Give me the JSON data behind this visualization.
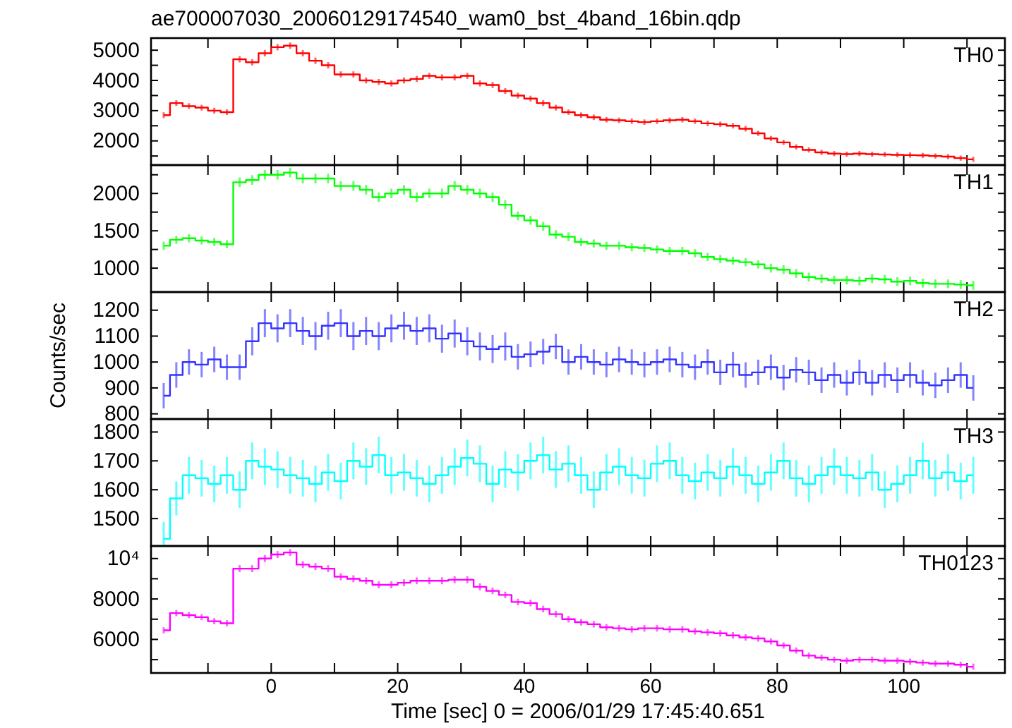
{
  "chart_data": [
    {
      "type": "step",
      "title": "ae700007030_20060129174540_wam0_bst_4band_16bin.qdp",
      "annotations": [
        "TH0"
      ],
      "xlim": [
        -19,
        116
      ],
      "xticks": [
        {
          "value": -10,
          "label": null
        },
        0,
        {
          "value": 10,
          "label": null
        },
        20,
        {
          "value": 30,
          "label": null
        },
        40,
        {
          "value": 50,
          "label": null
        },
        60,
        {
          "value": 70,
          "label": null
        },
        80,
        {
          "value": 90,
          "label": null
        },
        100,
        {
          "value": 110,
          "label": null
        }
      ],
      "ylim": [
        1200,
        5400
      ],
      "yticks": [
        {
          "value": 1500,
          "label": null
        },
        2000,
        {
          "value": 2500,
          "label": null
        },
        3000,
        {
          "value": 3500,
          "label": null
        },
        4000,
        {
          "value": 4500,
          "label": null
        },
        5000
      ],
      "tick_labels": "y",
      "x": [
        -17,
        -15,
        -13,
        -11,
        -9,
        -7,
        -5,
        -3,
        -1,
        1,
        3,
        5,
        7,
        9,
        11,
        13,
        15,
        17,
        19,
        21,
        23,
        25,
        27,
        29,
        31,
        33,
        35,
        37,
        39,
        41,
        43,
        45,
        47,
        49,
        51,
        53,
        55,
        57,
        59,
        61,
        63,
        65,
        67,
        69,
        71,
        73,
        75,
        77,
        79,
        81,
        83,
        85,
        87,
        89,
        91,
        93,
        95,
        97,
        99,
        101,
        103,
        105,
        107,
        109,
        111
      ],
      "series": [
        {
          "color": "#ff0000",
          "values": [
            2850,
            3250,
            3150,
            3100,
            3000,
            2950,
            4700,
            4600,
            4900,
            5100,
            5150,
            4900,
            4650,
            4500,
            4200,
            4200,
            4000,
            3950,
            3900,
            4000,
            4050,
            4150,
            4100,
            4100,
            4150,
            3900,
            3850,
            3650,
            3500,
            3400,
            3250,
            3100,
            2950,
            2850,
            2780,
            2700,
            2680,
            2650,
            2620,
            2650,
            2680,
            2700,
            2650,
            2580,
            2550,
            2500,
            2400,
            2250,
            2080,
            1950,
            1800,
            1700,
            1620,
            1580,
            1560,
            1580,
            1560,
            1550,
            1540,
            1530,
            1520,
            1500,
            1480,
            1430,
            1390
          ],
          "errors": [
            60,
            60,
            60,
            60,
            60,
            60,
            70,
            70,
            70,
            70,
            70,
            70,
            70,
            70,
            65,
            65,
            65,
            65,
            65,
            65,
            65,
            65,
            65,
            65,
            65,
            65,
            65,
            60,
            60,
            60,
            60,
            60,
            55,
            55,
            55,
            55,
            55,
            55,
            55,
            55,
            55,
            55,
            55,
            55,
            55,
            55,
            55,
            50,
            50,
            50,
            50,
            50,
            50,
            50,
            50,
            50,
            50,
            50,
            50,
            50,
            50,
            50,
            50,
            50,
            50
          ]
        }
      ]
    },
    {
      "type": "step",
      "annotations": [
        "TH1"
      ],
      "xlim": [
        -19,
        116
      ],
      "xticks": [
        {
          "value": -10,
          "label": null
        },
        0,
        {
          "value": 10,
          "label": null
        },
        20,
        {
          "value": 30,
          "label": null
        },
        40,
        {
          "value": 50,
          "label": null
        },
        60,
        {
          "value": 70,
          "label": null
        },
        80,
        {
          "value": 90,
          "label": null
        },
        100,
        {
          "value": 110,
          "label": null
        }
      ],
      "ylim": [
        680,
        2380
      ],
      "yticks": [
        1000,
        {
          "value": 1250,
          "label": null
        },
        1500,
        {
          "value": 1750,
          "label": null
        },
        2000,
        {
          "value": 2250,
          "label": null
        }
      ],
      "tick_labels": "y",
      "x": [
        -17,
        -15,
        -13,
        -11,
        -9,
        -7,
        -5,
        -3,
        -1,
        1,
        3,
        5,
        7,
        9,
        11,
        13,
        15,
        17,
        19,
        21,
        23,
        25,
        27,
        29,
        31,
        33,
        35,
        37,
        39,
        41,
        43,
        45,
        47,
        49,
        51,
        53,
        55,
        57,
        59,
        61,
        63,
        65,
        67,
        69,
        71,
        73,
        75,
        77,
        79,
        81,
        83,
        85,
        87,
        89,
        91,
        93,
        95,
        97,
        99,
        101,
        103,
        105,
        107,
        109,
        111
      ],
      "series": [
        {
          "color": "#00ff00",
          "values": [
            1300,
            1380,
            1400,
            1370,
            1350,
            1320,
            2150,
            2180,
            2250,
            2250,
            2280,
            2200,
            2200,
            2200,
            2100,
            2100,
            2050,
            1950,
            2000,
            2050,
            1950,
            2000,
            2000,
            2100,
            2050,
            2000,
            1950,
            1850,
            1700,
            1640,
            1560,
            1450,
            1420,
            1350,
            1330,
            1300,
            1300,
            1280,
            1270,
            1250,
            1230,
            1230,
            1200,
            1150,
            1120,
            1100,
            1080,
            1050,
            1000,
            980,
            930,
            880,
            860,
            840,
            840,
            830,
            860,
            850,
            820,
            830,
            800,
            790,
            790,
            780,
            770
          ],
          "errors": [
            40,
            40,
            40,
            40,
            40,
            40,
            50,
            50,
            50,
            50,
            50,
            50,
            50,
            50,
            50,
            50,
            50,
            50,
            50,
            50,
            50,
            50,
            50,
            50,
            50,
            50,
            50,
            45,
            45,
            45,
            45,
            45,
            45,
            40,
            40,
            40,
            40,
            40,
            40,
            40,
            40,
            40,
            40,
            40,
            40,
            40,
            40,
            40,
            45,
            45,
            45,
            45,
            45,
            45,
            45,
            45,
            45,
            45,
            45,
            45,
            45,
            45,
            45,
            45,
            45
          ]
        }
      ]
    },
    {
      "type": "step",
      "annotations": [
        "TH2"
      ],
      "ylabel": "Counts/sec",
      "xlim": [
        -19,
        116
      ],
      "xticks": [
        {
          "value": -10,
          "label": null
        },
        0,
        {
          "value": 10,
          "label": null
        },
        20,
        {
          "value": 30,
          "label": null
        },
        40,
        {
          "value": 50,
          "label": null
        },
        60,
        {
          "value": 70,
          "label": null
        },
        80,
        {
          "value": 90,
          "label": null
        },
        100,
        {
          "value": 110,
          "label": null
        }
      ],
      "ylim": [
        780,
        1270
      ],
      "yticks": [
        800,
        900,
        1000,
        1100,
        1200
      ],
      "tick_labels": "y",
      "x": [
        -17,
        -15,
        -13,
        -11,
        -9,
        -7,
        -5,
        -3,
        -1,
        1,
        3,
        5,
        7,
        9,
        11,
        13,
        15,
        17,
        19,
        21,
        23,
        25,
        27,
        29,
        31,
        33,
        35,
        37,
        39,
        41,
        43,
        45,
        47,
        49,
        51,
        53,
        55,
        57,
        59,
        61,
        63,
        65,
        67,
        69,
        71,
        73,
        75,
        77,
        79,
        81,
        83,
        85,
        87,
        89,
        91,
        93,
        95,
        97,
        99,
        101,
        103,
        105,
        107,
        109,
        111
      ],
      "series": [
        {
          "color": "#3333ff",
          "values": [
            870,
            950,
            1000,
            990,
            1010,
            980,
            980,
            1080,
            1150,
            1130,
            1150,
            1120,
            1100,
            1140,
            1150,
            1100,
            1120,
            1100,
            1130,
            1140,
            1120,
            1130,
            1090,
            1110,
            1080,
            1060,
            1050,
            1060,
            1020,
            1030,
            1040,
            1060,
            1000,
            1020,
            1000,
            990,
            1010,
            1000,
            990,
            1000,
            1010,
            990,
            980,
            1000,
            960,
            990,
            950,
            960,
            980,
            940,
            970,
            960,
            930,
            950,
            920,
            960,
            920,
            950,
            930,
            950,
            920,
            910,
            930,
            950,
            900
          ],
          "errors": [
            45,
            45,
            45,
            45,
            45,
            45,
            45,
            50,
            50,
            50,
            50,
            50,
            50,
            50,
            50,
            50,
            50,
            50,
            50,
            50,
            50,
            50,
            50,
            50,
            50,
            50,
            50,
            50,
            45,
            45,
            45,
            45,
            45,
            45,
            45,
            45,
            45,
            45,
            45,
            45,
            45,
            45,
            45,
            45,
            45,
            45,
            45,
            45,
            45,
            45,
            45,
            45,
            45,
            45,
            45,
            45,
            45,
            45,
            45,
            45,
            45,
            45,
            45,
            45,
            45
          ]
        }
      ]
    },
    {
      "type": "step",
      "annotations": [
        "TH3"
      ],
      "xlim": [
        -19,
        116
      ],
      "xticks": [
        {
          "value": -10,
          "label": null
        },
        0,
        {
          "value": 10,
          "label": null
        },
        20,
        {
          "value": 30,
          "label": null
        },
        40,
        {
          "value": 50,
          "label": null
        },
        60,
        {
          "value": 70,
          "label": null
        },
        80,
        {
          "value": 90,
          "label": null
        },
        100,
        {
          "value": 110,
          "label": null
        }
      ],
      "ylim": [
        1405,
        1845
      ],
      "yticks": [
        1500,
        1600,
        1700,
        1800
      ],
      "tick_labels": "y",
      "x": [
        -17,
        -15,
        -13,
        -11,
        -9,
        -7,
        -5,
        -3,
        -1,
        1,
        3,
        5,
        7,
        9,
        11,
        13,
        15,
        17,
        19,
        21,
        23,
        25,
        27,
        29,
        31,
        33,
        35,
        37,
        39,
        41,
        43,
        45,
        47,
        49,
        51,
        53,
        55,
        57,
        59,
        61,
        63,
        65,
        67,
        69,
        71,
        73,
        75,
        77,
        79,
        81,
        83,
        85,
        87,
        89,
        91,
        93,
        95,
        97,
        99,
        101,
        103,
        105,
        107,
        109,
        111
      ],
      "series": [
        {
          "color": "#00ffff",
          "values": [
            1430,
            1570,
            1650,
            1640,
            1620,
            1650,
            1600,
            1700,
            1680,
            1670,
            1650,
            1640,
            1620,
            1660,
            1630,
            1700,
            1680,
            1720,
            1650,
            1660,
            1640,
            1620,
            1650,
            1680,
            1710,
            1690,
            1620,
            1670,
            1660,
            1700,
            1720,
            1670,
            1690,
            1650,
            1600,
            1660,
            1680,
            1650,
            1640,
            1690,
            1700,
            1650,
            1630,
            1660,
            1640,
            1680,
            1650,
            1620,
            1660,
            1700,
            1640,
            1620,
            1650,
            1680,
            1650,
            1640,
            1660,
            1600,
            1620,
            1650,
            1700,
            1640,
            1660,
            1630,
            1650
          ],
          "errors": [
            55,
            55,
            60,
            60,
            60,
            60,
            60,
            60,
            60,
            60,
            60,
            60,
            60,
            60,
            60,
            60,
            60,
            60,
            60,
            60,
            60,
            60,
            60,
            60,
            60,
            60,
            60,
            60,
            60,
            60,
            60,
            60,
            60,
            60,
            60,
            60,
            60,
            60,
            60,
            60,
            60,
            60,
            60,
            60,
            60,
            60,
            60,
            60,
            60,
            60,
            60,
            60,
            60,
            60,
            60,
            60,
            60,
            60,
            60,
            60,
            60,
            60,
            60,
            60,
            60
          ]
        }
      ]
    },
    {
      "type": "step",
      "annotations": [
        "TH0123"
      ],
      "xlabel": "Time [sec] 0 = 2006/01/29 17:45:40.651",
      "xlim": [
        -19,
        116
      ],
      "xticks": [
        {
          "value": -10,
          "label": null
        },
        0,
        {
          "value": 10,
          "label": null
        },
        20,
        {
          "value": 30,
          "label": null
        },
        40,
        {
          "value": 50,
          "label": null
        },
        60,
        {
          "value": 70,
          "label": null
        },
        80,
        {
          "value": 90,
          "label": null
        },
        100,
        {
          "value": 110,
          "label": null
        }
      ],
      "ylim": [
        4340,
        10620
      ],
      "yticks": [
        {
          "value": 5000,
          "label": null
        },
        6000,
        {
          "value": 7000,
          "label": null
        },
        8000,
        {
          "value": 9000,
          "label": null
        },
        {
          "value": 10000,
          "label": "10⁴"
        }
      ],
      "x": [
        -17,
        -15,
        -13,
        -11,
        -9,
        -7,
        -5,
        -3,
        -1,
        1,
        3,
        5,
        7,
        9,
        11,
        13,
        15,
        17,
        19,
        21,
        23,
        25,
        27,
        29,
        31,
        33,
        35,
        37,
        39,
        41,
        43,
        45,
        47,
        49,
        51,
        53,
        55,
        57,
        59,
        61,
        63,
        65,
        67,
        69,
        71,
        73,
        75,
        77,
        79,
        81,
        83,
        85,
        87,
        89,
        91,
        93,
        95,
        97,
        99,
        101,
        103,
        105,
        107,
        109,
        111
      ],
      "series": [
        {
          "color": "#ff00ff",
          "values": [
            6450,
            7300,
            7200,
            7100,
            6900,
            6800,
            9500,
            9500,
            10000,
            10200,
            10300,
            9700,
            9600,
            9500,
            9100,
            9000,
            8900,
            8700,
            8700,
            8800,
            8900,
            8900,
            8900,
            8950,
            8950,
            8600,
            8400,
            8200,
            7850,
            7800,
            7500,
            7250,
            7000,
            6850,
            6750,
            6600,
            6550,
            6500,
            6550,
            6550,
            6500,
            6500,
            6400,
            6350,
            6300,
            6200,
            6100,
            6050,
            5900,
            5700,
            5450,
            5200,
            5100,
            5000,
            4950,
            5000,
            5000,
            4950,
            4950,
            4900,
            4850,
            4800,
            4800,
            4750,
            4650
          ],
          "errors": [
            100,
            100,
            100,
            100,
            100,
            100,
            120,
            120,
            120,
            120,
            120,
            120,
            120,
            120,
            120,
            120,
            120,
            120,
            120,
            120,
            120,
            120,
            120,
            120,
            120,
            120,
            110,
            110,
            110,
            110,
            110,
            110,
            110,
            110,
            110,
            110,
            110,
            110,
            110,
            110,
            110,
            110,
            110,
            110,
            110,
            110,
            110,
            110,
            100,
            100,
            100,
            100,
            100,
            100,
            100,
            100,
            100,
            100,
            100,
            100,
            100,
            100,
            100,
            100,
            100
          ]
        }
      ]
    }
  ]
}
